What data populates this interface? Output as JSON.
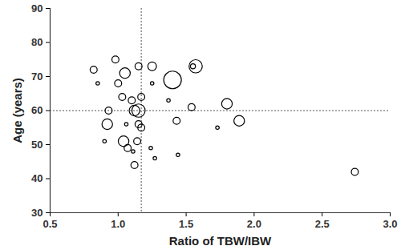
{
  "chart_data": {
    "type": "scatter",
    "x_label": "Ratio of TBW/IBW",
    "y_label": "Age (years)",
    "x": [
      0.82,
      0.85,
      0.98,
      1.05,
      1.0,
      1.15,
      1.25,
      1.25,
      1.57,
      1.55,
      1.4,
      1.03,
      1.1,
      1.17,
      1.37,
      0.93,
      1.12,
      1.15,
      1.54,
      1.8,
      0.92,
      1.06,
      1.15,
      1.17,
      1.43,
      1.73,
      1.89,
      0.9,
      1.04,
      1.07,
      1.14,
      1.11,
      1.24,
      1.12,
      1.27,
      1.44,
      2.74
    ],
    "values": [
      72,
      68,
      75,
      71,
      68,
      73,
      73,
      68,
      73,
      73,
      69,
      64,
      63,
      64,
      63,
      60,
      60,
      60,
      61,
      62,
      56,
      56,
      56,
      55,
      57,
      55,
      57,
      51,
      51,
      49,
      51,
      48,
      49,
      44,
      46,
      47,
      42
    ],
    "sizes": [
      4,
      1,
      4,
      9,
      4,
      4,
      6,
      1,
      14,
      2,
      25,
      4,
      4,
      4,
      1,
      4,
      9,
      14,
      4,
      9,
      9,
      1,
      4,
      4,
      4,
      1,
      9,
      1,
      9,
      4,
      4,
      1,
      1,
      4,
      1,
      1,
      4
    ],
    "color": "#000000",
    "marker": "open circle",
    "xlim": [
      0.5,
      3.0
    ],
    "xticks": [
      0.5,
      {
        "value": 1,
        "label": "1.0"
      },
      1.5,
      {
        "value": 2,
        "label": "2.0"
      },
      2.5,
      {
        "value": 3,
        "label": "3.0"
      }
    ],
    "ylim": [
      30,
      90
    ],
    "yticks": [
      30,
      40,
      50,
      60,
      70,
      80,
      90
    ],
    "reference_lines": {
      "x": 1.17,
      "y": 60
    },
    "line_style": "dotted",
    "grid": false
  }
}
